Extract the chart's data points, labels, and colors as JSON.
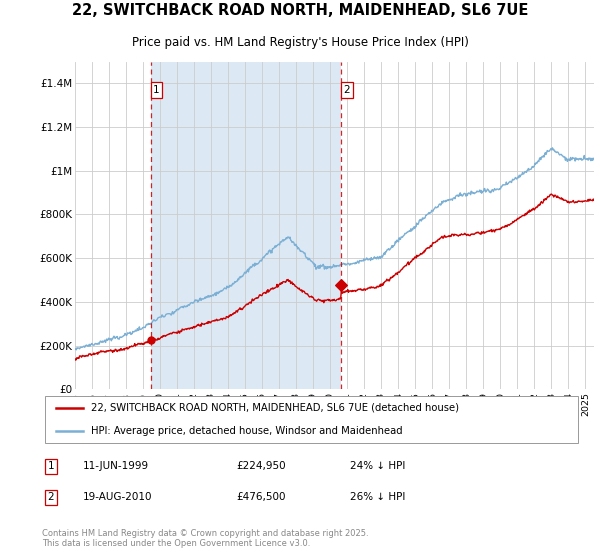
{
  "title": "22, SWITCHBACK ROAD NORTH, MAIDENHEAD, SL6 7UE",
  "subtitle": "Price paid vs. HM Land Registry's House Price Index (HPI)",
  "bg_color": "#dce9f5",
  "white_bg": "#ffffff",
  "red_color": "#cc0000",
  "blue_color": "#7bafd4",
  "shade_color": "#dce9f5",
  "ylim": [
    0,
    1500000
  ],
  "yticks": [
    0,
    200000,
    400000,
    600000,
    800000,
    1000000,
    1200000,
    1400000
  ],
  "ytick_labels": [
    "£0",
    "£200K",
    "£400K",
    "£600K",
    "£800K",
    "£1M",
    "£1.2M",
    "£1.4M"
  ],
  "marker1_x": 1999.44,
  "marker1_y": 224950,
  "marker2_x": 2010.63,
  "marker2_y": 476500,
  "legend_red": "22, SWITCHBACK ROAD NORTH, MAIDENHEAD, SL6 7UE (detached house)",
  "legend_blue": "HPI: Average price, detached house, Windsor and Maidenhead",
  "copyright": "Contains HM Land Registry data © Crown copyright and database right 2025.\nThis data is licensed under the Open Government Licence v3.0.",
  "xmin": 1995,
  "xmax": 2025.5,
  "sale1_date": "11-JUN-1999",
  "sale1_price": "£224,950",
  "sale1_pct": "24% ↓ HPI",
  "sale2_date": "19-AUG-2010",
  "sale2_price": "£476,500",
  "sale2_pct": "26% ↓ HPI"
}
